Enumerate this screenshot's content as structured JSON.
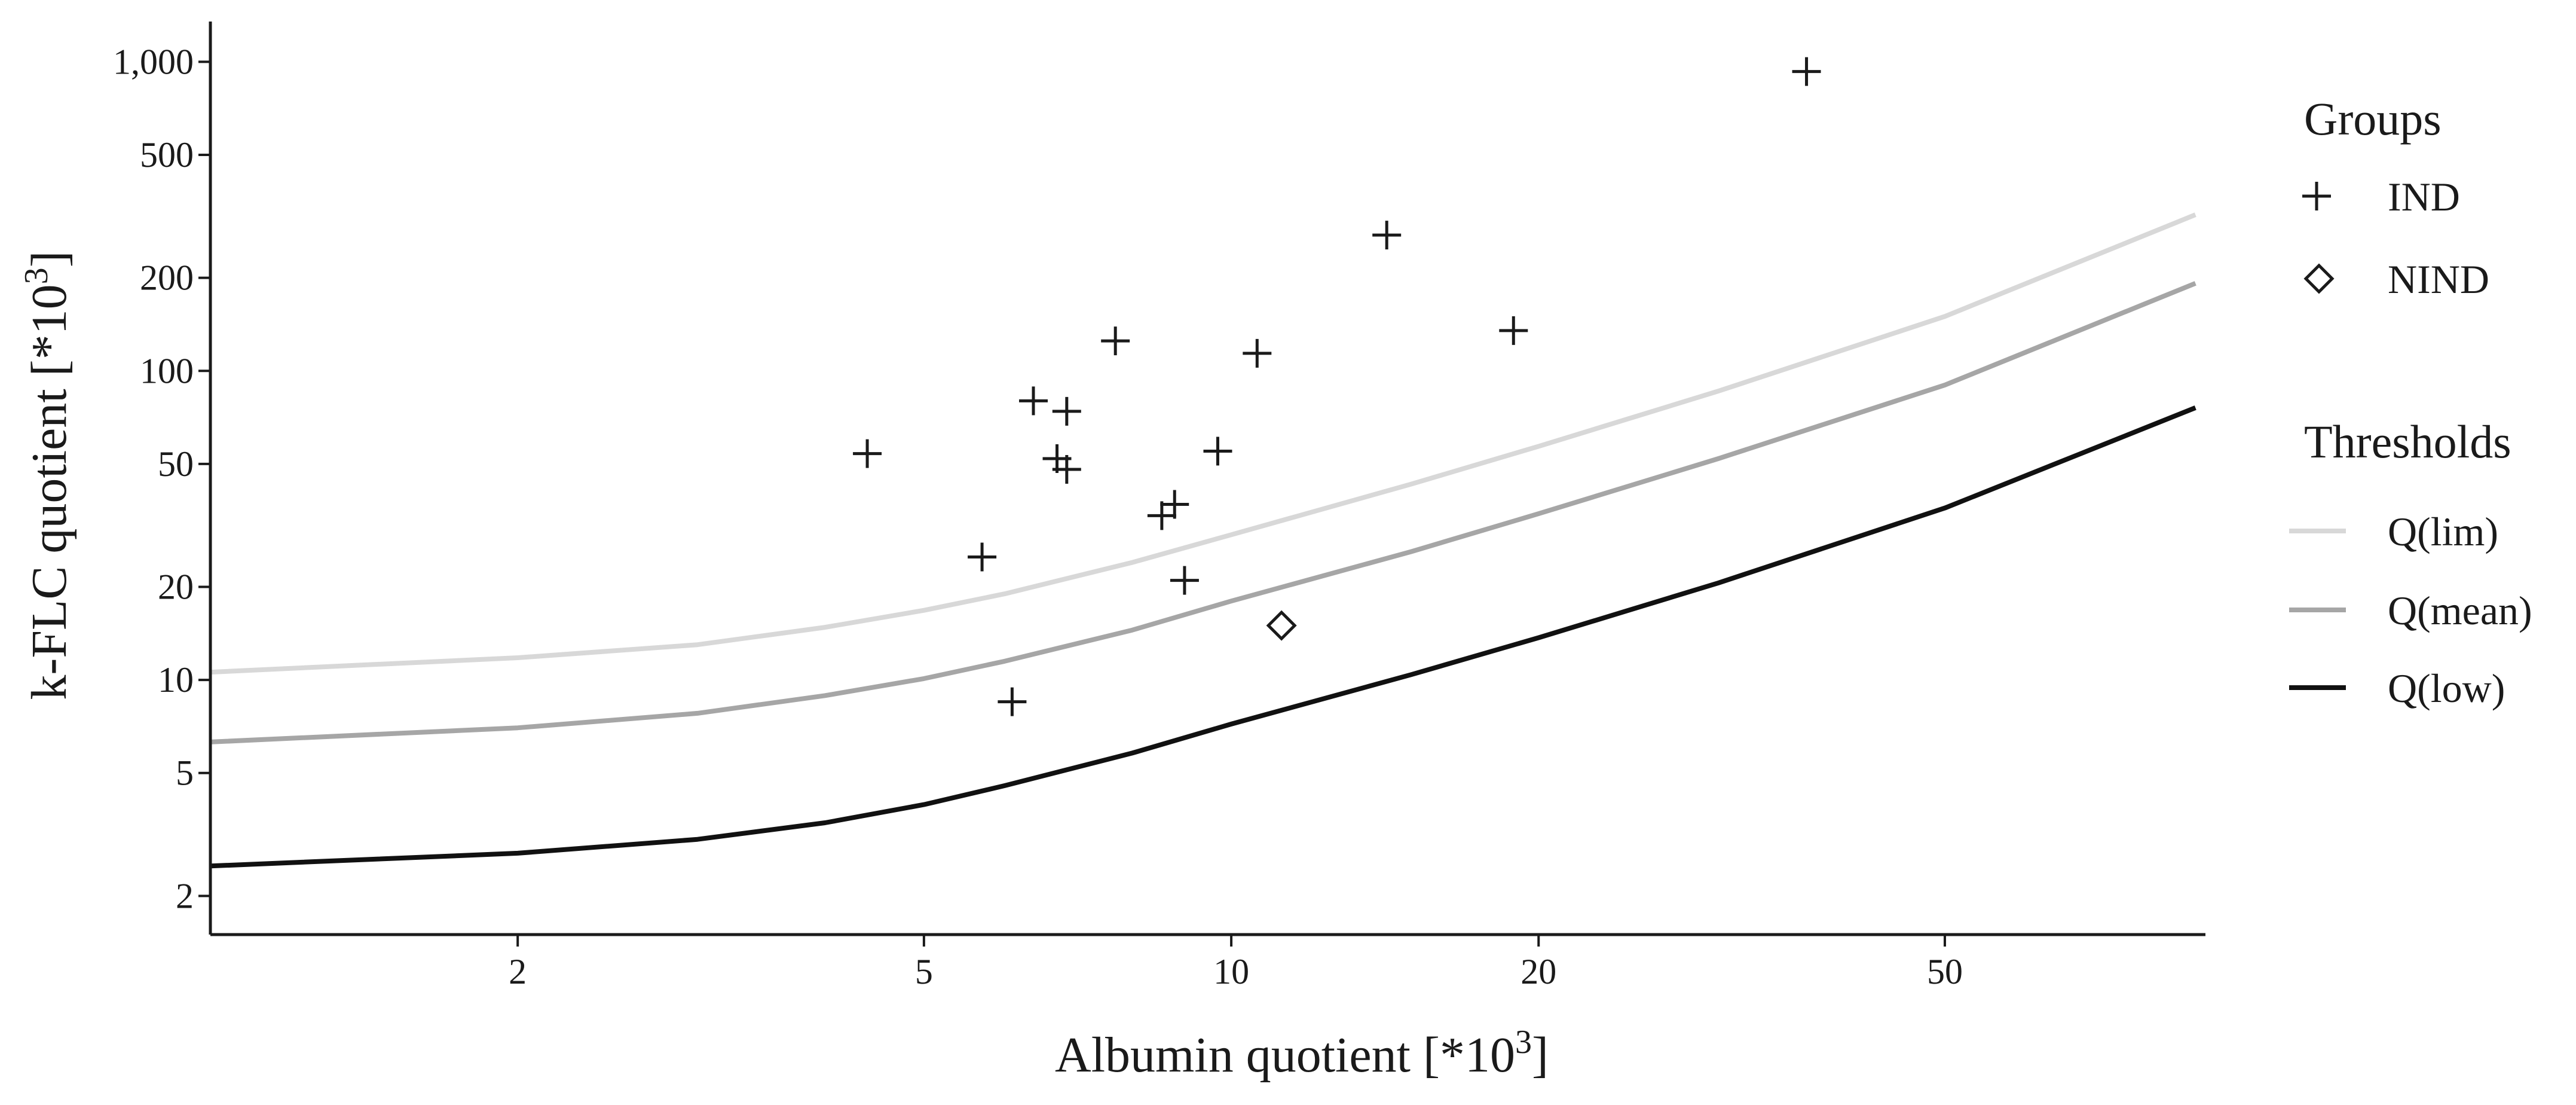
{
  "chart_data": {
    "type": "scatter",
    "xlabel": "Albumin quotient [*10",
    "xlabel_sup": "3",
    "xlabel_end": "]",
    "ylabel": "k-FLC quotient [*10",
    "ylabel_sup": "3",
    "ylabel_end": "]",
    "x_scale": "log",
    "y_scale": "log",
    "xlim": [
      1,
      90
    ],
    "ylim": [
      1.5,
      1350
    ],
    "x_ticks": [
      {
        "value": 2,
        "label": "2"
      },
      {
        "value": 5,
        "label": "5"
      },
      {
        "value": 10,
        "label": "10"
      },
      {
        "value": 20,
        "label": "20"
      },
      {
        "value": 50,
        "label": "50"
      }
    ],
    "y_ticks": [
      {
        "value": 2,
        "label": "2"
      },
      {
        "value": 5,
        "label": "5"
      },
      {
        "value": 10,
        "label": "10"
      },
      {
        "value": 20,
        "label": "20"
      },
      {
        "value": 50,
        "label": "50"
      },
      {
        "value": 100,
        "label": "100"
      },
      {
        "value": 200,
        "label": "200"
      },
      {
        "value": 500,
        "label": "500"
      },
      {
        "value": 1000,
        "label": "1,000"
      }
    ],
    "grid": false,
    "legend_position": "right",
    "groups_title": "Groups",
    "thresholds_title": "Thresholds",
    "series": [
      {
        "name": "IND",
        "marker": "plus",
        "color": "#1a1a1a",
        "points": [
          [
            4.4,
            54
          ],
          [
            5.7,
            25
          ],
          [
            6.1,
            8.5
          ],
          [
            6.4,
            80
          ],
          [
            6.75,
            52
          ],
          [
            6.9,
            74
          ],
          [
            6.9,
            48
          ],
          [
            7.7,
            125
          ],
          [
            8.55,
            34
          ],
          [
            8.8,
            37
          ],
          [
            9.0,
            21
          ],
          [
            9.7,
            55
          ],
          [
            10.6,
            114
          ],
          [
            14.2,
            275
          ],
          [
            18.9,
            135
          ],
          [
            36.6,
            930
          ]
        ]
      },
      {
        "name": "NIND",
        "marker": "diamond",
        "color": "#1a1a1a",
        "points": [
          [
            11.2,
            15
          ]
        ]
      }
    ],
    "threshold_lines": [
      {
        "name": "Q(lim)",
        "color": "#d8d8d8",
        "points": [
          [
            1,
            10.6
          ],
          [
            2,
            11.8
          ],
          [
            3,
            13.0
          ],
          [
            4,
            14.8
          ],
          [
            5,
            16.8
          ],
          [
            6,
            19.0
          ],
          [
            8,
            24.0
          ],
          [
            10,
            29.5
          ],
          [
            15,
            43
          ],
          [
            20,
            57
          ],
          [
            30,
            86
          ],
          [
            50,
            150
          ],
          [
            88,
            320
          ]
        ]
      },
      {
        "name": "Q(mean)",
        "color": "#a6a6a6",
        "points": [
          [
            1,
            6.3
          ],
          [
            2,
            7.0
          ],
          [
            3,
            7.8
          ],
          [
            4,
            8.9
          ],
          [
            5,
            10.1
          ],
          [
            6,
            11.5
          ],
          [
            8,
            14.5
          ],
          [
            10,
            18
          ],
          [
            15,
            26
          ],
          [
            20,
            34.5
          ],
          [
            30,
            52
          ],
          [
            50,
            90
          ],
          [
            88,
            192
          ]
        ]
      },
      {
        "name": "Q(low)",
        "color": "#111111",
        "points": [
          [
            1,
            2.5
          ],
          [
            2,
            2.75
          ],
          [
            3,
            3.05
          ],
          [
            4,
            3.45
          ],
          [
            5,
            3.95
          ],
          [
            6,
            4.55
          ],
          [
            8,
            5.8
          ],
          [
            10,
            7.2
          ],
          [
            15,
            10.4
          ],
          [
            20,
            13.7
          ],
          [
            30,
            20.6
          ],
          [
            50,
            36
          ],
          [
            88,
            76
          ]
        ]
      }
    ]
  }
}
